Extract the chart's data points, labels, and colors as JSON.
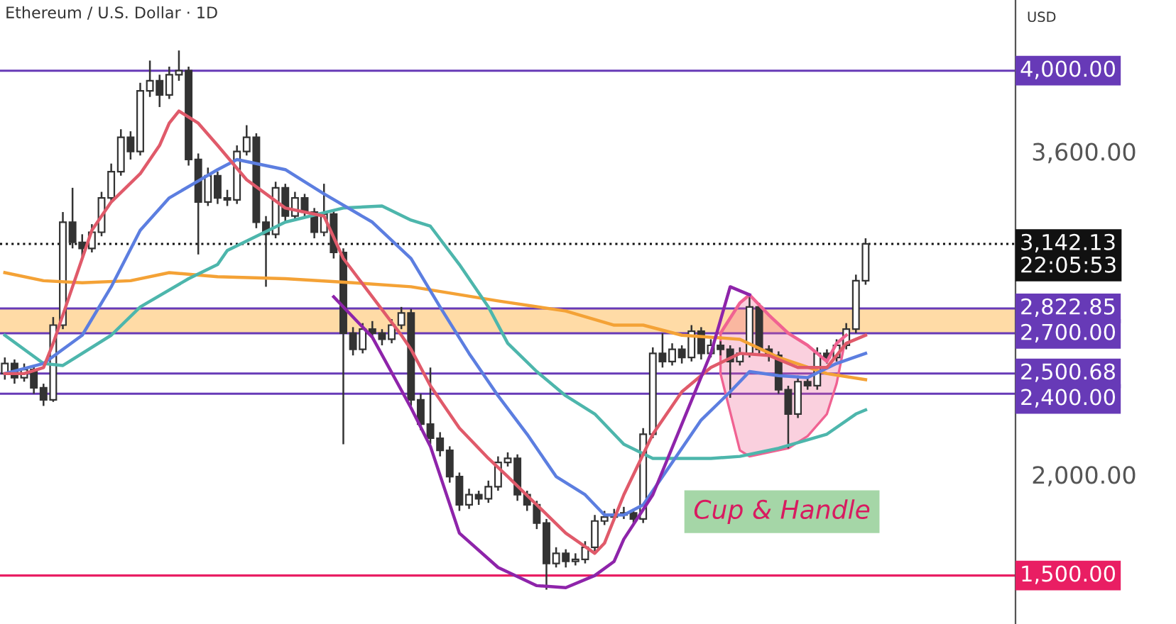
{
  "chart_data": {
    "type": "candlestick",
    "title": "Ethereum / U.S. Dollar · 1D",
    "ylabel": "USD",
    "categories": [
      null,
      null,
      null,
      null,
      null,
      null,
      null,
      null,
      null,
      null,
      null,
      null,
      null,
      null,
      null,
      null,
      null,
      null,
      null,
      null,
      null,
      null,
      null,
      null,
      null,
      null,
      null,
      null,
      null,
      null,
      null,
      null,
      null,
      null,
      null,
      null,
      null,
      null,
      null,
      null,
      null,
      null,
      null,
      null,
      null,
      null,
      null,
      null,
      null,
      null,
      null,
      null,
      null,
      null,
      null,
      null,
      null,
      null,
      null,
      null,
      null,
      null,
      null,
      null,
      null,
      null,
      null,
      null,
      null,
      null,
      null,
      null,
      null,
      null,
      null,
      null,
      null,
      null,
      null,
      null,
      null,
      null,
      null,
      null,
      null,
      null,
      null,
      null,
      null,
      null,
      null,
      null,
      null,
      null,
      null,
      null,
      null,
      null,
      null,
      null,
      null,
      null,
      null,
      null,
      null
    ],
    "color": "#333333",
    "ohlc": [
      [
        2500,
        2580,
        2470,
        2550
      ],
      [
        2550,
        2570,
        2450,
        2480
      ],
      [
        2480,
        2550,
        2460,
        2520
      ],
      [
        2520,
        2540,
        2400,
        2430
      ],
      [
        2430,
        2450,
        2340,
        2370
      ],
      [
        2370,
        2780,
        2360,
        2740
      ],
      [
        2740,
        3300,
        2720,
        3250
      ],
      [
        3250,
        3420,
        3120,
        3150
      ],
      [
        3150,
        3190,
        3080,
        3120
      ],
      [
        3120,
        3240,
        3100,
        3200
      ],
      [
        3200,
        3400,
        3180,
        3370
      ],
      [
        3370,
        3540,
        3350,
        3500
      ],
      [
        3500,
        3710,
        3480,
        3670
      ],
      [
        3670,
        3700,
        3560,
        3600
      ],
      [
        3600,
        3940,
        3580,
        3900
      ],
      [
        3900,
        4050,
        3870,
        3950
      ],
      [
        3950,
        3980,
        3820,
        3880
      ],
      [
        3880,
        4020,
        3860,
        3980
      ],
      [
        3980,
        4100,
        3950,
        4000
      ],
      [
        4000,
        4020,
        3530,
        3560
      ],
      [
        3560,
        3590,
        3090,
        3350
      ],
      [
        3350,
        3520,
        3330,
        3480
      ],
      [
        3480,
        3500,
        3340,
        3370
      ],
      [
        3370,
        3410,
        3330,
        3360
      ],
      [
        3360,
        3630,
        3340,
        3600
      ],
      [
        3600,
        3730,
        3580,
        3670
      ],
      [
        3670,
        3690,
        3220,
        3250
      ],
      [
        3250,
        3280,
        2930,
        3190
      ],
      [
        3190,
        3450,
        3170,
        3420
      ],
      [
        3420,
        3440,
        3250,
        3280
      ],
      [
        3280,
        3400,
        3260,
        3370
      ],
      [
        3370,
        3390,
        3270,
        3300
      ],
      [
        3300,
        3320,
        3170,
        3200
      ],
      [
        3200,
        3440,
        3180,
        3290
      ],
      [
        3290,
        3310,
        3070,
        3100
      ],
      [
        3100,
        3120,
        2150,
        2700
      ],
      [
        2700,
        2730,
        2590,
        2620
      ],
      [
        2620,
        2750,
        2600,
        2720
      ],
      [
        2720,
        2760,
        2670,
        2700
      ],
      [
        2700,
        2720,
        2640,
        2670
      ],
      [
        2670,
        2770,
        2650,
        2740
      ],
      [
        2740,
        2830,
        2720,
        2800
      ],
      [
        2800,
        2820,
        2340,
        2370
      ],
      [
        2370,
        2400,
        2220,
        2250
      ],
      [
        2250,
        2530,
        2150,
        2180
      ],
      [
        2180,
        2210,
        2090,
        2120
      ],
      [
        2120,
        2140,
        1960,
        1990
      ],
      [
        1990,
        2010,
        1820,
        1850
      ],
      [
        1850,
        1930,
        1830,
        1900
      ],
      [
        1900,
        1920,
        1850,
        1880
      ],
      [
        1880,
        1970,
        1860,
        1940
      ],
      [
        1940,
        2090,
        1920,
        2060
      ],
      [
        2060,
        2110,
        2040,
        2080
      ],
      [
        2080,
        2100,
        1870,
        1900
      ],
      [
        1900,
        1920,
        1820,
        1850
      ],
      [
        1850,
        1870,
        1730,
        1760
      ],
      [
        1760,
        1780,
        1430,
        1560
      ],
      [
        1560,
        1640,
        1540,
        1610
      ],
      [
        1610,
        1630,
        1540,
        1570
      ],
      [
        1570,
        1610,
        1550,
        1580
      ],
      [
        1580,
        1670,
        1560,
        1640
      ],
      [
        1640,
        1800,
        1620,
        1770
      ],
      [
        1770,
        1820,
        1750,
        1790
      ],
      [
        1790,
        1830,
        1770,
        1800
      ],
      [
        1800,
        1840,
        1780,
        1810
      ],
      [
        1810,
        1830,
        1750,
        1780
      ],
      [
        1780,
        2230,
        1760,
        2200
      ],
      [
        2200,
        2630,
        2180,
        2600
      ],
      [
        2600,
        2700,
        2530,
        2560
      ],
      [
        2560,
        2650,
        2540,
        2620
      ],
      [
        2620,
        2640,
        2550,
        2580
      ],
      [
        2580,
        2740,
        2560,
        2710
      ],
      [
        2710,
        2730,
        2570,
        2600
      ],
      [
        2600,
        2670,
        2580,
        2640
      ],
      [
        2640,
        2660,
        2590,
        2620
      ],
      [
        2620,
        2640,
        2380,
        2560
      ],
      [
        2560,
        2630,
        2540,
        2600
      ],
      [
        2600,
        2880,
        2580,
        2830
      ],
      [
        2830,
        2850,
        2600,
        2620
      ],
      [
        2620,
        2640,
        2560,
        2590
      ],
      [
        2590,
        2610,
        2400,
        2420
      ],
      [
        2420,
        2440,
        2130,
        2300
      ],
      [
        2300,
        2490,
        2280,
        2460
      ],
      [
        2460,
        2480,
        2420,
        2440
      ],
      [
        2440,
        2630,
        2420,
        2600
      ],
      [
        2600,
        2620,
        2550,
        2580
      ],
      [
        2580,
        2670,
        2560,
        2640
      ],
      [
        2640,
        2750,
        2620,
        2720
      ],
      [
        2720,
        2990,
        2700,
        2960
      ],
      [
        2960,
        3170,
        2940,
        3142.13
      ],
      null,
      null,
      null,
      null,
      null,
      null,
      null,
      null,
      null,
      null,
      null,
      null,
      null,
      null,
      null
    ],
    "series": [
      {
        "type": "line",
        "color": "#f4a236",
        "values": [
          3000,
          null,
          null,
          null,
          2960,
          null,
          null,
          null,
          2950,
          null,
          null,
          null,
          null,
          2960,
          null,
          null,
          null,
          3000,
          null,
          null,
          null,
          null,
          2980,
          null,
          null,
          null,
          null,
          null,
          null,
          2970,
          null,
          null,
          null,
          null,
          null,
          null,
          2950,
          null,
          null,
          null,
          null,
          null,
          2930,
          null,
          null,
          null,
          null,
          null,
          null,
          null,
          null,
          2860,
          null,
          null,
          null,
          null,
          null,
          null,
          2810,
          null,
          null,
          null,
          null,
          2740,
          null,
          null,
          2740,
          null,
          null,
          null,
          2690,
          null,
          null,
          null,
          null,
          null,
          2670,
          null,
          null,
          null,
          2580,
          null,
          null,
          null,
          null,
          2500,
          null,
          null,
          null,
          2470,
          null,
          null,
          null,
          null,
          null,
          null,
          null,
          null,
          null,
          null,
          null,
          null,
          null,
          null,
          null
        ]
      },
      {
        "type": "line",
        "color": "#4db6ac",
        "values": [
          2690,
          null,
          null,
          null,
          2550,
          null,
          2540,
          null,
          null,
          null,
          null,
          2690,
          null,
          null,
          2830,
          null,
          null,
          null,
          null,
          2970,
          null,
          null,
          3040,
          3110,
          null,
          null,
          null,
          null,
          null,
          3250,
          null,
          null,
          null,
          null,
          null,
          3320,
          null,
          null,
          null,
          3330,
          null,
          null,
          3260,
          null,
          3230,
          null,
          null,
          3040,
          null,
          null,
          2830,
          null,
          2650,
          null,
          null,
          2510,
          null,
          null,
          2390,
          null,
          null,
          2300,
          null,
          null,
          2150,
          null,
          null,
          2080,
          null,
          null,
          2080,
          null,
          null,
          2080,
          null,
          null,
          2090,
          null,
          null,
          null,
          2130,
          null,
          null,
          null,
          null,
          2200,
          null,
          null,
          2300,
          2320,
          null,
          null,
          null,
          null,
          null,
          null,
          null,
          null,
          null,
          null,
          null,
          null,
          null,
          null,
          null
        ]
      },
      {
        "type": "line",
        "color": "#5c7ee0",
        "values": [
          2500,
          null,
          null,
          null,
          2550,
          null,
          null,
          null,
          2690,
          null,
          null,
          2930,
          null,
          null,
          3210,
          null,
          null,
          3370,
          null,
          null,
          null,
          null,
          3510,
          null,
          3560,
          null,
          null,
          null,
          null,
          3510,
          null,
          null,
          null,
          3390,
          null,
          null,
          null,
          null,
          3250,
          null,
          null,
          null,
          3070,
          null,
          null,
          2830,
          null,
          null,
          2600,
          null,
          null,
          2390,
          null,
          null,
          2200,
          null,
          null,
          1990,
          null,
          null,
          1900,
          null,
          1800,
          null,
          1800,
          null,
          1850,
          null,
          null,
          2060,
          null,
          null,
          2270,
          null,
          null,
          2410,
          null,
          2510,
          null,
          null,
          2490,
          null,
          null,
          2480,
          null,
          null,
          2550,
          null,
          null,
          2600,
          null,
          null,
          null,
          null,
          null,
          null,
          null,
          null,
          null,
          null,
          null,
          null,
          null,
          null,
          null
        ]
      },
      {
        "type": "line",
        "color": "#e05a6a",
        "values": [
          2500,
          null,
          2500,
          null,
          2530,
          2650,
          null,
          2930,
          null,
          3210,
          null,
          3350,
          null,
          null,
          3490,
          null,
          3630,
          3740,
          3800,
          null,
          3740,
          null,
          3630,
          null,
          null,
          3460,
          null,
          null,
          null,
          3320,
          null,
          null,
          null,
          3280,
          null,
          3070,
          null,
          null,
          2880,
          null,
          null,
          2690,
          2620,
          null,
          2440,
          null,
          null,
          2230,
          null,
          null,
          2080,
          null,
          1990,
          null,
          null,
          1850,
          null,
          null,
          1710,
          null,
          null,
          1610,
          1660,
          null,
          1900,
          null,
          null,
          2200,
          null,
          null,
          2410,
          null,
          null,
          2530,
          null,
          null,
          2600,
          null,
          null,
          2590,
          null,
          null,
          2530,
          null,
          null,
          2530,
          null,
          2650,
          null,
          2690,
          null,
          null,
          null,
          null,
          null,
          null,
          null,
          null,
          null,
          null,
          null,
          null,
          null,
          null,
          null
        ]
      },
      {
        "type": "line",
        "color": "#f06292",
        "upper": [
          null,
          null,
          null,
          null,
          null,
          null,
          null,
          null,
          null,
          null,
          null,
          null,
          null,
          null,
          null,
          null,
          null,
          null,
          null,
          null,
          null,
          null,
          null,
          null,
          null,
          null,
          null,
          null,
          null,
          null,
          null,
          null,
          null,
          null,
          null,
          null,
          null,
          null,
          null,
          null,
          null,
          null,
          null,
          null,
          null,
          null,
          null,
          null,
          null,
          null,
          null,
          null,
          null,
          null,
          null,
          null,
          null,
          null,
          null,
          null,
          null,
          null,
          null,
          null,
          null,
          null,
          null,
          null,
          null,
          null,
          null,
          null,
          null,
          null,
          2700,
          null,
          2850,
          2890,
          null,
          2790,
          null,
          2700,
          null,
          2640,
          null,
          2560,
          2650,
          2690,
          null,
          null,
          null,
          null,
          null,
          null,
          null,
          null,
          null,
          null,
          null,
          null,
          null,
          null,
          null,
          null,
          null
        ],
        "values": [
          null,
          null,
          null,
          null,
          null,
          null,
          null,
          null,
          null,
          null,
          null,
          null,
          null,
          null,
          null,
          null,
          null,
          null,
          null,
          null,
          null,
          null,
          null,
          null,
          null,
          null,
          null,
          null,
          null,
          null,
          null,
          null,
          null,
          null,
          null,
          null,
          null,
          null,
          null,
          null,
          null,
          null,
          null,
          null,
          null,
          null,
          null,
          null,
          null,
          null,
          null,
          null,
          null,
          null,
          null,
          null,
          null,
          null,
          null,
          null,
          null,
          null,
          null,
          null,
          null,
          null,
          null,
          null,
          null,
          null,
          null,
          null,
          null,
          null,
          2700,
          null,
          2850,
          2890,
          null,
          2790,
          null,
          2700,
          null,
          2640,
          null,
          2560,
          2650,
          2690,
          null,
          null,
          null,
          null,
          null,
          null,
          null,
          null,
          null,
          null,
          null,
          null,
          null,
          null,
          null,
          null,
          null
        ],
        "lower": [
          null,
          null,
          null,
          null,
          null,
          null,
          null,
          null,
          null,
          null,
          null,
          null,
          null,
          null,
          null,
          null,
          null,
          null,
          null,
          null,
          null,
          null,
          null,
          null,
          null,
          null,
          null,
          null,
          null,
          null,
          null,
          null,
          null,
          null,
          null,
          null,
          null,
          null,
          null,
          null,
          null,
          null,
          null,
          null,
          null,
          null,
          null,
          null,
          null,
          null,
          null,
          null,
          null,
          null,
          null,
          null,
          null,
          null,
          null,
          null,
          null,
          null,
          null,
          null,
          null,
          null,
          null,
          null,
          null,
          null,
          null,
          null,
          null,
          null,
          2500,
          null,
          2120,
          2090,
          null,
          2110,
          null,
          2130,
          null,
          2190,
          null,
          2300,
          2450,
          2690,
          null,
          null,
          null,
          null,
          null,
          null,
          null,
          null,
          null,
          null,
          null,
          null,
          null,
          null,
          null,
          null,
          null
        ]
      },
      {
        "type": "line",
        "color": "#8e24aa",
        "values": [
          null,
          null,
          null,
          null,
          null,
          null,
          null,
          null,
          null,
          null,
          null,
          null,
          null,
          null,
          null,
          null,
          null,
          null,
          null,
          null,
          null,
          null,
          null,
          null,
          null,
          null,
          null,
          null,
          null,
          null,
          null,
          null,
          null,
          null,
          2880,
          null,
          null,
          null,
          2680,
          null,
          null,
          null,
          2330,
          null,
          2140,
          null,
          null,
          1710,
          null,
          null,
          null,
          1540,
          null,
          null,
          null,
          1450,
          null,
          null,
          1440,
          null,
          null,
          1500,
          null,
          1570,
          1680,
          null,
          null,
          1900,
          null,
          null,
          2250,
          null,
          null,
          2600,
          null,
          2930,
          null,
          2890,
          null,
          null,
          null,
          null,
          null,
          null,
          null,
          null,
          null,
          null,
          null,
          null,
          null,
          null,
          null,
          null,
          null,
          null,
          null,
          null,
          null,
          null,
          null,
          null,
          null,
          null,
          null
        ]
      }
    ],
    "ylim": [
      1260,
      4350
    ],
    "yticks": [
      {
        "value": 2000,
        "label": "2,000.00"
      },
      {
        "value": 3600,
        "label": "3,600.00"
      }
    ],
    "bands": [
      {
        "axis": "y",
        "from": 2700,
        "to": 2822.85,
        "color": "#ffcc80"
      }
    ],
    "ref_lines": [
      {
        "axis": "y",
        "value": 4000,
        "label": "4,000.00",
        "color": "#673ab7",
        "line_style": "solid"
      },
      {
        "axis": "y",
        "value": 3142.13,
        "label": "3,142.13",
        "color": "#111111",
        "line_style": "dotted"
      },
      {
        "axis": "y",
        "value": 2822.85,
        "label": "2,822.85",
        "color": "#673ab7",
        "line_style": "solid"
      },
      {
        "axis": "y",
        "value": 2700,
        "label": "2,700.00",
        "color": "#673ab7",
        "line_style": "solid"
      },
      {
        "axis": "y",
        "value": 2500.68,
        "label": "2,500.68",
        "color": "#673ab7",
        "line_style": "solid"
      },
      {
        "axis": "y",
        "value": 2400,
        "label": "2,400.00",
        "color": "#673ab7",
        "line_style": "solid"
      },
      {
        "axis": "y",
        "value": 1500,
        "label": "1,500.00",
        "color": "#e91e63",
        "line_style": "solid"
      }
    ],
    "annotations": [
      "Cup & Handle",
      "22:05:53"
    ],
    "grid": false,
    "legend": false
  }
}
